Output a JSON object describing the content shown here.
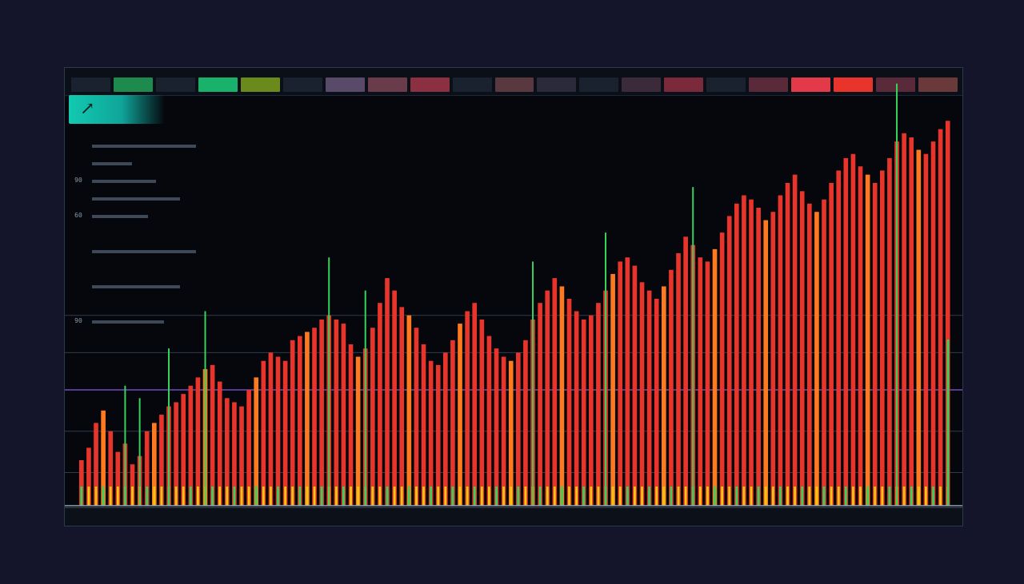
{
  "app": {
    "logo_text": "↗",
    "colors": {
      "background": "#14142b",
      "panel": "#06070d",
      "accent": "#12c9b0",
      "bar_red": "#e8342a",
      "bar_orange": "#ff7a1f",
      "bar_yellow": "#f2c60e",
      "bar_green": "#36d25c",
      "line_purple": "#8c5cf0",
      "grid": "#3a4a5c"
    }
  },
  "tabs": [
    {
      "color": "#1a2230"
    },
    {
      "color": "#1f8a4d"
    },
    {
      "color": "#1a2230"
    },
    {
      "color": "#18b26a"
    },
    {
      "color": "#6a8a1c"
    },
    {
      "color": "#1a2230"
    },
    {
      "color": "#5a4a6a"
    },
    {
      "color": "#6a3b4a"
    },
    {
      "color": "#8a3040"
    },
    {
      "color": "#1a2230"
    },
    {
      "color": "#5a3840"
    },
    {
      "color": "#2a2a3a"
    },
    {
      "color": "#1a2230"
    },
    {
      "color": "#3a2a3a"
    },
    {
      "color": "#7a2a3a"
    },
    {
      "color": "#1a2230"
    },
    {
      "color": "#5a2a3a"
    },
    {
      "color": "#e33a4a"
    },
    {
      "color": "#e8342a"
    },
    {
      "color": "#5a2a3a"
    },
    {
      "color": "#6a3a3a"
    }
  ],
  "side_rows": [
    {
      "num": "",
      "bar": 130
    },
    {
      "num": "",
      "bar": 50
    },
    {
      "num": "90",
      "bar": 80
    },
    {
      "num": "",
      "bar": 110
    },
    {
      "num": "60",
      "bar": 70
    },
    {
      "num": "",
      "bar": 0
    },
    {
      "num": "",
      "bar": 130
    },
    {
      "num": "",
      "bar": 0
    },
    {
      "num": "",
      "bar": 110
    },
    {
      "num": "",
      "bar": 0
    },
    {
      "num": "90",
      "bar": 90
    }
  ],
  "chart_data": {
    "type": "bar",
    "bar_count": 120,
    "values": [
      22,
      28,
      40,
      46,
      36,
      26,
      30,
      20,
      24,
      36,
      40,
      44,
      48,
      50,
      54,
      58,
      62,
      66,
      68,
      60,
      52,
      50,
      48,
      56,
      62,
      70,
      74,
      72,
      70,
      80,
      82,
      84,
      86,
      90,
      92,
      90,
      88,
      78,
      72,
      76,
      86,
      98,
      110,
      104,
      96,
      92,
      86,
      78,
      70,
      68,
      74,
      80,
      88,
      94,
      98,
      90,
      82,
      76,
      72,
      70,
      74,
      80,
      90,
      98,
      104,
      110,
      106,
      100,
      94,
      90,
      92,
      98,
      104,
      112,
      118,
      120,
      116,
      108,
      104,
      100,
      106,
      114,
      122,
      130,
      126,
      120,
      118,
      124,
      132,
      140,
      146,
      150,
      148,
      144,
      138,
      142,
      150,
      156,
      160,
      152,
      146,
      142,
      148,
      156,
      162,
      168,
      170,
      164,
      160,
      156,
      162,
      168,
      176,
      180,
      178,
      172,
      170,
      176,
      182,
      186
    ],
    "ylim": [
      0,
      200
    ],
    "overlay_levels": [
      {
        "value": 92,
        "color": "#3a4a5c"
      },
      {
        "value": 74,
        "color": "#3a4a5c"
      },
      {
        "value": 56,
        "color": "#8c5cf0"
      },
      {
        "value": 36,
        "color": "#3a4a5c"
      },
      {
        "value": 16,
        "color": "#3a4a5c"
      }
    ]
  }
}
